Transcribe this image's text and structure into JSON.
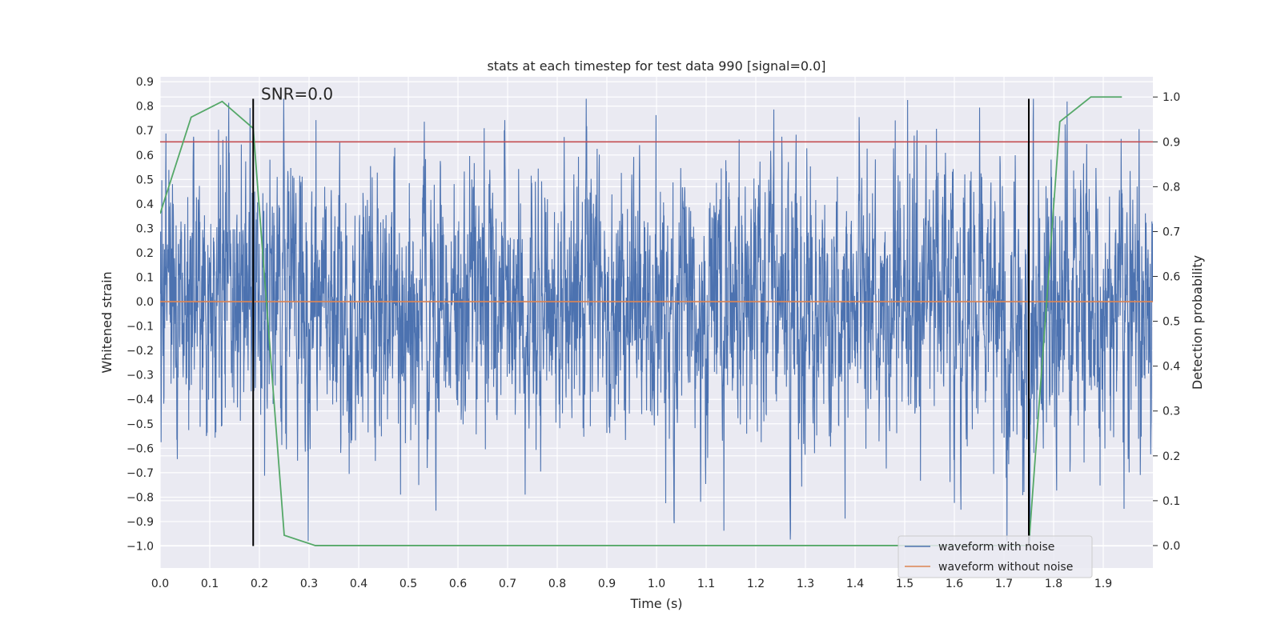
{
  "chart_data": {
    "type": "line",
    "title": "stats at each timestep for test data 990 [signal=0.0]",
    "xlabel": "Time (s)",
    "ylabel": "Whitened strain",
    "y2label": "Detection probability",
    "xlim": [
      0.0,
      2.0
    ],
    "ylim": [
      -1.09,
      0.92
    ],
    "y2lim": [
      -0.05,
      1.045
    ],
    "grid": true,
    "x_ticks": [
      0.0,
      0.1,
      0.2,
      0.3,
      0.4,
      0.5,
      0.6,
      0.7,
      0.8,
      0.9,
      1.0,
      1.1,
      1.2,
      1.3,
      1.4,
      1.5,
      1.6,
      1.7,
      1.8,
      1.9
    ],
    "x_tick_labels": [
      "0.0",
      "0.1",
      "0.2",
      "0.3",
      "0.4",
      "0.5",
      "0.6",
      "0.7",
      "0.8",
      "0.9",
      "1.0",
      "1.1",
      "1.2",
      "1.3",
      "1.4",
      "1.5",
      "1.6",
      "1.7",
      "1.8",
      "1.9"
    ],
    "y_ticks": [
      0.9,
      0.8,
      0.7,
      0.6,
      0.5,
      0.4,
      0.3,
      0.2,
      0.1,
      0.0,
      -0.1,
      -0.2,
      -0.3,
      -0.4,
      -0.5,
      -0.6,
      -0.7,
      -0.8,
      -0.9,
      -1.0
    ],
    "y_tick_labels": [
      "0.9",
      "0.8",
      "0.7",
      "0.6",
      "0.5",
      "0.4",
      "0.3",
      "0.2",
      "0.1",
      "0.0",
      "−0.1",
      "−0.2",
      "−0.3",
      "−0.4",
      "−0.5",
      "−0.6",
      "−0.7",
      "−0.8",
      "−0.9",
      "−1.0"
    ],
    "y2_ticks": [
      1.0,
      0.9,
      0.8,
      0.7,
      0.6,
      0.5,
      0.4,
      0.3,
      0.2,
      0.1,
      0.0
    ],
    "y2_tick_labels": [
      "1.0",
      "0.9",
      "0.8",
      "0.7",
      "0.6",
      "0.5",
      "0.4",
      "0.3",
      "0.2",
      "0.1",
      "0.0"
    ],
    "noisy_waveform": {
      "name": "waveform with noise",
      "color": "#4c72b0",
      "sample_rate_hz": 2048,
      "duration_s": 2.0,
      "approx_std": 0.28,
      "min": -0.98,
      "max": 0.83
    },
    "clean_waveform": {
      "name": "waveform without noise",
      "color": "#dd8452",
      "value": 0.0
    },
    "detection_probability": {
      "color": "#55a868",
      "x": [
        0.0,
        0.0625,
        0.125,
        0.1875,
        0.25,
        0.3125,
        0.375,
        0.4375,
        0.5,
        0.5625,
        0.625,
        0.6875,
        0.75,
        0.8125,
        0.875,
        0.9375,
        1.0,
        1.0625,
        1.125,
        1.1875,
        1.25,
        1.3125,
        1.375,
        1.4375,
        1.5,
        1.5625,
        1.625,
        1.6875,
        1.75,
        1.8125,
        1.875,
        1.9375
      ],
      "y": [
        0.74,
        0.955,
        0.99,
        0.93,
        0.023,
        0.0,
        0.0,
        0.0,
        0.0,
        0.0,
        0.0,
        0.0,
        0.0,
        0.0,
        0.0,
        0.0,
        0.0,
        0.0,
        0.0,
        0.0,
        0.0,
        0.0,
        0.0,
        0.0,
        0.0,
        0.0,
        0.0,
        0.0,
        0.0,
        0.945,
        1.0,
        1.0
      ]
    },
    "threshold": {
      "value": 0.9,
      "axis": "y2",
      "color": "#c44e52"
    },
    "vertical_markers": [
      0.1875,
      1.75
    ],
    "marker_y_range": [
      -1.0,
      0.83
    ],
    "annotation": {
      "text": "SNR=0.0",
      "x": 0.2,
      "y": 0.83
    },
    "legend": {
      "position": "lower-right",
      "entries": [
        {
          "label": "waveform with noise",
          "color": "#4c72b0"
        },
        {
          "label": "waveform without noise",
          "color": "#dd8452"
        }
      ]
    }
  }
}
